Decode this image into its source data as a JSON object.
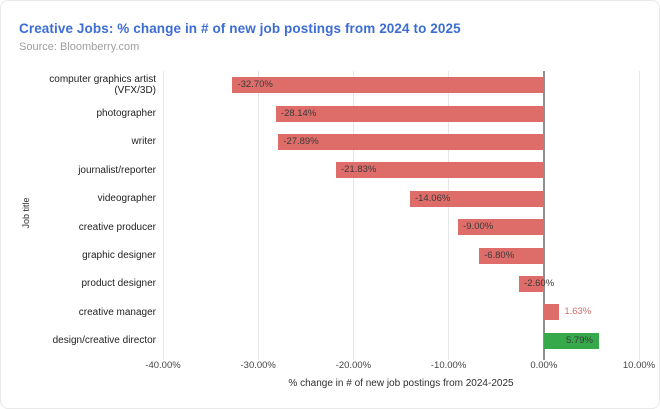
{
  "header": {
    "title": "Creative Jobs: % change in # of new job postings from 2024 to 2025",
    "source": "Source: Bloomberry.com"
  },
  "colors": {
    "title_blue": "#3c6dd5",
    "bar_red": "#de6d6a",
    "bar_green": "#36a94b",
    "value_label_dark": "#3a3a3a"
  },
  "chart_data": {
    "type": "bar",
    "orientation": "horizontal",
    "title": "Creative Jobs: % change in # of new job postings from 2024 to 2025",
    "xlabel": "% change in # of new job postings from 2024-2025",
    "ylabel": "Job title",
    "categories": [
      "computer graphics artist\n(VFX/3D)",
      "photographer",
      "writer",
      "journalist/reporter",
      "videographer",
      "creative producer",
      "graphic designer",
      "product designer",
      "creative manager",
      "design/creative director"
    ],
    "values": [
      -32.7,
      -28.14,
      -27.89,
      -21.83,
      -14.06,
      -9.0,
      -6.8,
      -2.6,
      1.63,
      5.79
    ],
    "value_labels": [
      "-32.70%",
      "-28.14%",
      "-27.89%",
      "-21.83%",
      "-14.06%",
      "-9.00%",
      "-6.80%",
      "-2.60%",
      "1.63%",
      "5.79%"
    ],
    "bar_colors": [
      "#de6d6a",
      "#de6d6a",
      "#de6d6a",
      "#de6d6a",
      "#de6d6a",
      "#de6d6a",
      "#de6d6a",
      "#de6d6a",
      "#de6d6a",
      "#36a94b"
    ],
    "xlim": [
      -40,
      10
    ],
    "xticks": [
      -40,
      -30,
      -20,
      -10,
      0,
      10
    ],
    "xtick_labels": [
      "-40.00%",
      "-30.00%",
      "-20.00%",
      "-10.00%",
      "0.00%",
      "10.00%"
    ],
    "grid": true,
    "legend": "none"
  }
}
